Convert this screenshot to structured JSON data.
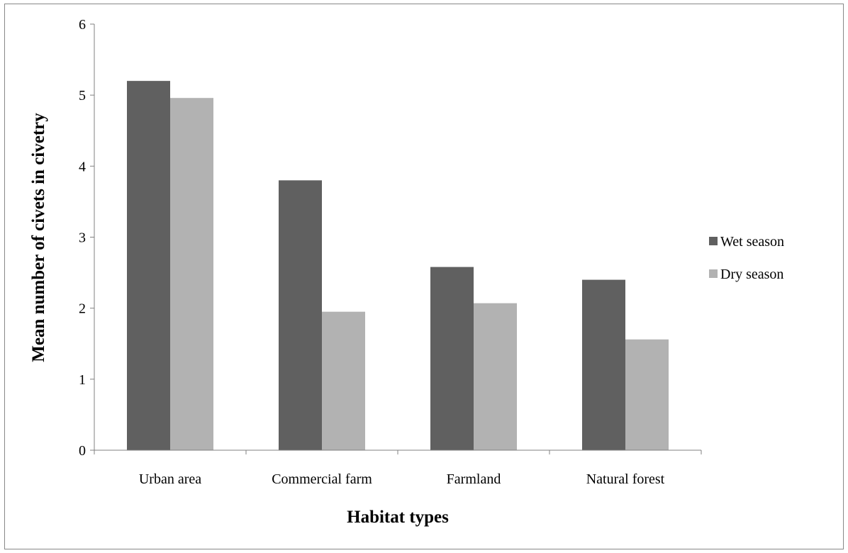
{
  "chart_data": {
    "type": "bar",
    "title": "",
    "xlabel": "Habitat types",
    "ylabel": "Mean number of civets in civetry",
    "categories": [
      "Urban area",
      "Commercial farm",
      "Farmland",
      "Natural forest"
    ],
    "series": [
      {
        "name": "Wet season",
        "values": [
          5.2,
          3.8,
          2.58,
          2.4
        ],
        "color": "#606060"
      },
      {
        "name": "Dry season",
        "values": [
          4.96,
          1.95,
          2.07,
          1.56
        ],
        "color": "#b2b2b2"
      }
    ],
    "ylim": [
      0,
      6
    ],
    "yticks": [
      0,
      1,
      2,
      3,
      4,
      5,
      6
    ],
    "grid": false,
    "legend_position": "right"
  }
}
